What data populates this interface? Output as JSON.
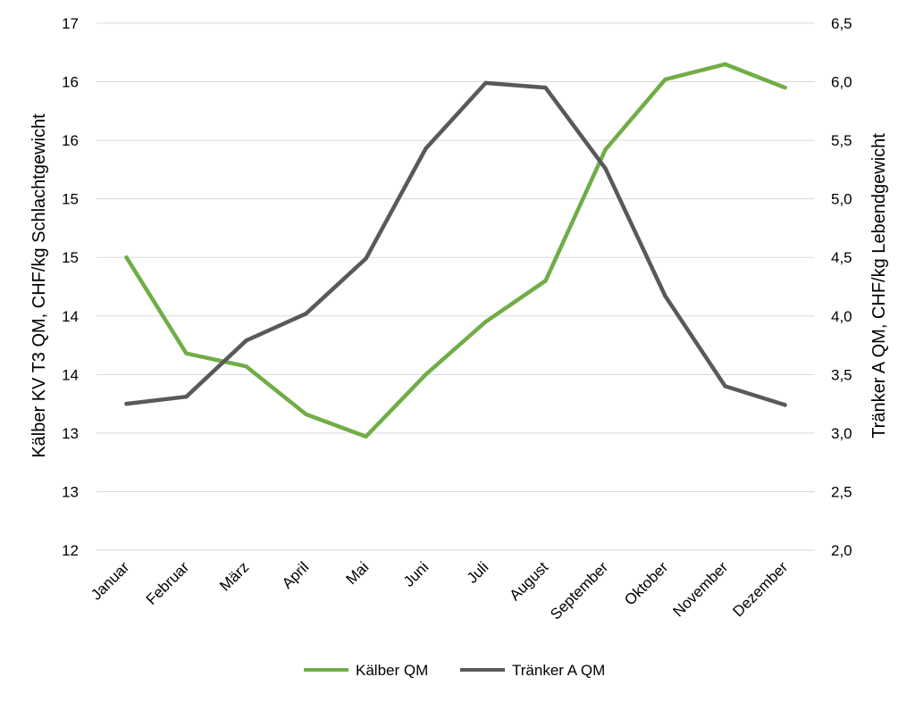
{
  "chart_data": {
    "type": "line",
    "categories": [
      "Januar",
      "Februar",
      "März",
      "April",
      "Mai",
      "Juni",
      "Juli",
      "August",
      "September",
      "Oktober",
      "November",
      "Dezember"
    ],
    "ylabel": "Kälber KV T3 QM, CHF/kg Schlachtgewicht",
    "y2label": "Tränker A QM, CHF/kg Lebendgewicht",
    "ylim": [
      12,
      16.5
    ],
    "y2lim": [
      2.0,
      6.5
    ],
    "y_ticks": [
      12,
      12.5,
      13,
      13.5,
      14,
      14.5,
      15,
      15.5,
      16,
      16.5
    ],
    "y_tick_labels": [
      "12",
      "13",
      "13",
      "14",
      "14",
      "15",
      "15",
      "16",
      "16",
      "17"
    ],
    "y2_ticks": [
      2.0,
      2.5,
      3.0,
      3.5,
      4.0,
      4.5,
      5.0,
      5.5,
      6.0,
      6.5
    ],
    "y2_tick_labels": [
      "2,0",
      "2,5",
      "3,0",
      "3,5",
      "4,0",
      "4,5",
      "5,0",
      "5,5",
      "6,0",
      "6,5"
    ],
    "grid": true,
    "legend": "bottom",
    "series": [
      {
        "name": "Kälber QM",
        "axis": "left",
        "color": "#70ad47",
        "values": [
          14.5,
          13.68,
          13.57,
          13.16,
          12.97,
          13.5,
          13.95,
          14.3,
          15.42,
          16.02,
          16.15,
          15.95
        ]
      },
      {
        "name": "Tränker A QM",
        "axis": "right",
        "color": "#595959",
        "values": [
          3.25,
          3.31,
          3.79,
          4.02,
          4.49,
          5.43,
          5.99,
          5.95,
          5.26,
          4.17,
          3.4,
          3.24
        ]
      }
    ]
  }
}
